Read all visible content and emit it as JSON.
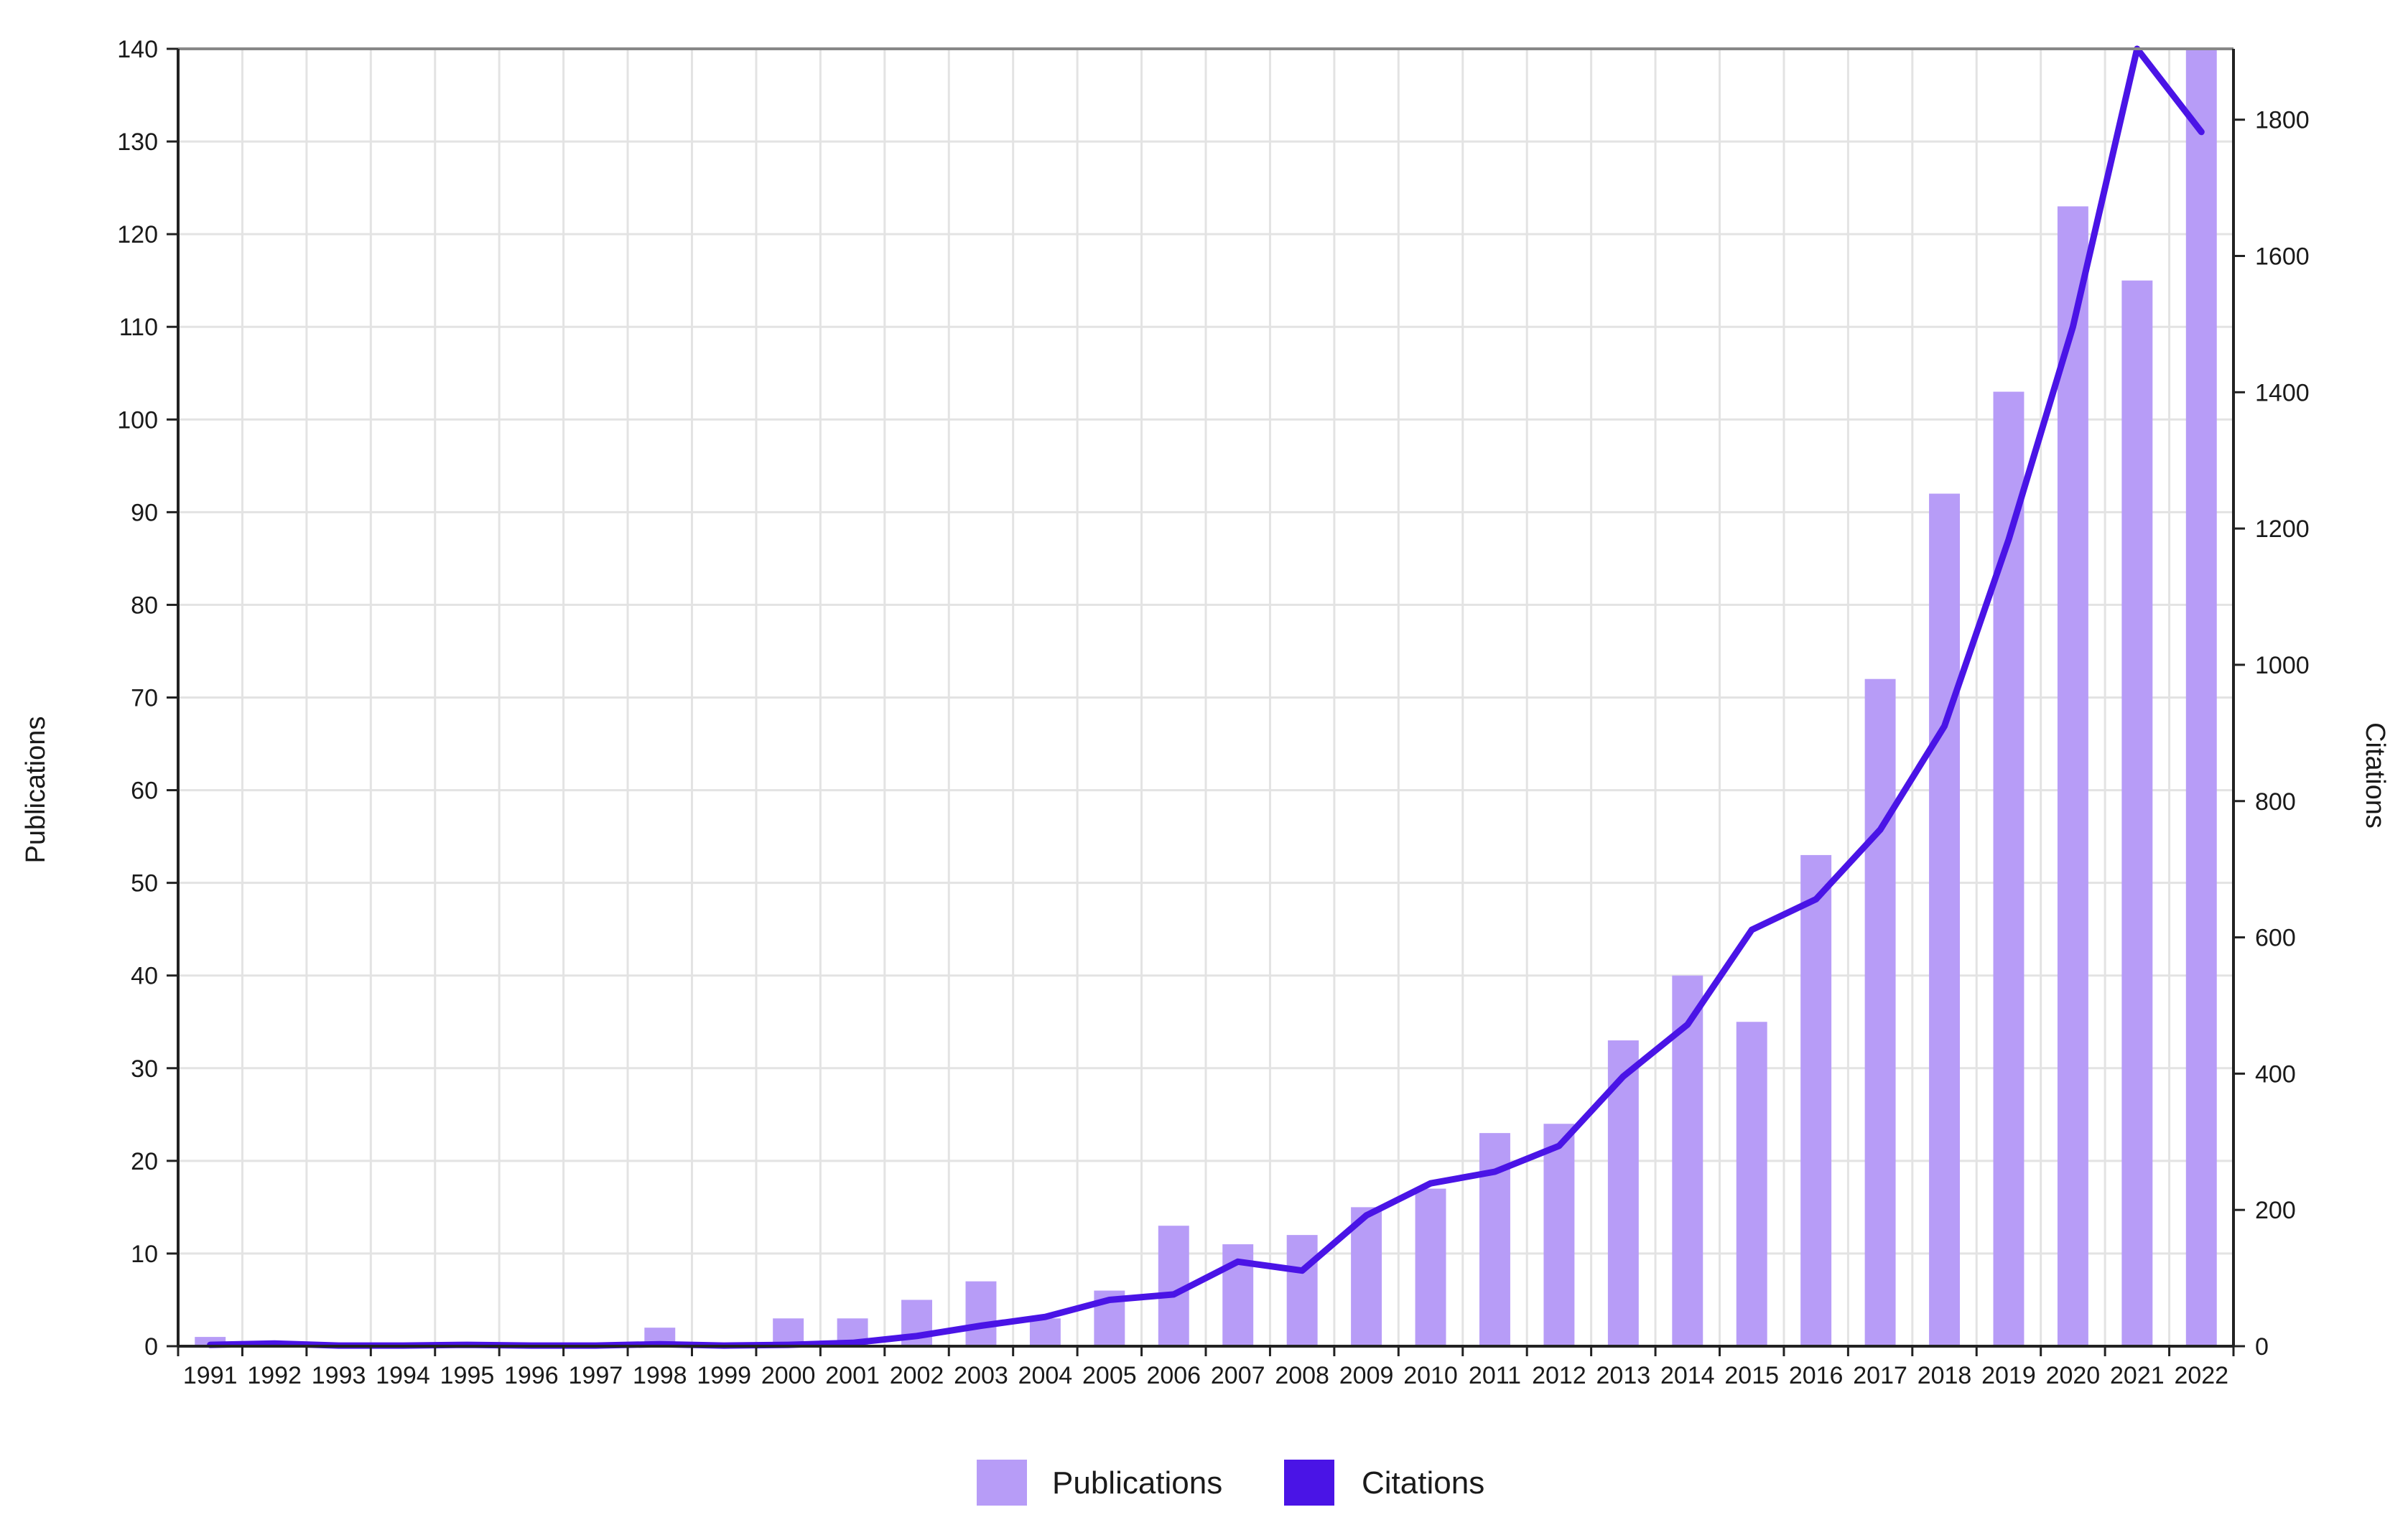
{
  "chart_data": {
    "type": "bar",
    "categories": [
      "1991",
      "1992",
      "1993",
      "1994",
      "1995",
      "1996",
      "1997",
      "1998",
      "1999",
      "2000",
      "2001",
      "2002",
      "2003",
      "2004",
      "2005",
      "2006",
      "2007",
      "2008",
      "2009",
      "2010",
      "2011",
      "2012",
      "2013",
      "2014",
      "2015",
      "2016",
      "2017",
      "2018",
      "2019",
      "2020",
      "2021",
      "2022"
    ],
    "series": [
      {
        "name": "Publications",
        "kind": "bar",
        "axis": "left",
        "color": "#b79cf7",
        "values": [
          1,
          0,
          0,
          0,
          0,
          0,
          0,
          2,
          0,
          3,
          3,
          5,
          7,
          3,
          6,
          13,
          11,
          12,
          15,
          17,
          23,
          24,
          33,
          40,
          35,
          53,
          72,
          92,
          103,
          123,
          115,
          140
        ]
      },
      {
        "name": "Citations",
        "kind": "line",
        "axis": "right",
        "color": "#4a14e6",
        "values": [
          2,
          4,
          1,
          1,
          2,
          1,
          1,
          3,
          1,
          2,
          5,
          15,
          30,
          43,
          68,
          76,
          124,
          111,
          192,
          239,
          256,
          294,
          396,
          472,
          611,
          656,
          758,
          910,
          1184,
          1496,
          1904,
          1782
        ]
      }
    ],
    "ylabel": "Publications",
    "y2label": "Citations",
    "ylim": [
      0,
      140
    ],
    "y2lim": [
      0,
      1904
    ],
    "yticks": [
      0,
      10,
      20,
      30,
      40,
      50,
      60,
      70,
      80,
      90,
      100,
      110,
      120,
      130,
      140
    ],
    "y2ticks": [
      0,
      200,
      400,
      600,
      800,
      1000,
      1200,
      1400,
      1600,
      1800
    ],
    "grid": true,
    "legend_position": "bottom-center"
  }
}
